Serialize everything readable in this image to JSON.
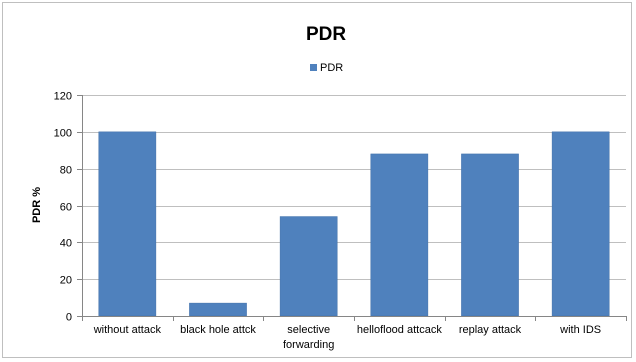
{
  "chart_data": {
    "type": "bar",
    "title": "PDR",
    "xlabel": "",
    "ylabel": "PDR %",
    "categories": [
      "without attack",
      "black hole attck",
      "selective forwarding",
      "helloflood attcack",
      "replay attack",
      "with IDS"
    ],
    "series": [
      {
        "name": "PDR",
        "values": [
          100,
          7,
          54,
          88,
          88,
          100
        ],
        "color": "#4F81BD"
      }
    ],
    "ylim": [
      0,
      120
    ],
    "yticks": [
      0,
      20,
      40,
      60,
      80,
      100,
      120
    ],
    "grid": true,
    "legend": "top-center",
    "colors": {
      "bar": "#4F81BD",
      "bar_edge": "#3f6fa8",
      "grid": "#bfbfbf",
      "axis": "#868686",
      "text": "#000000"
    }
  }
}
